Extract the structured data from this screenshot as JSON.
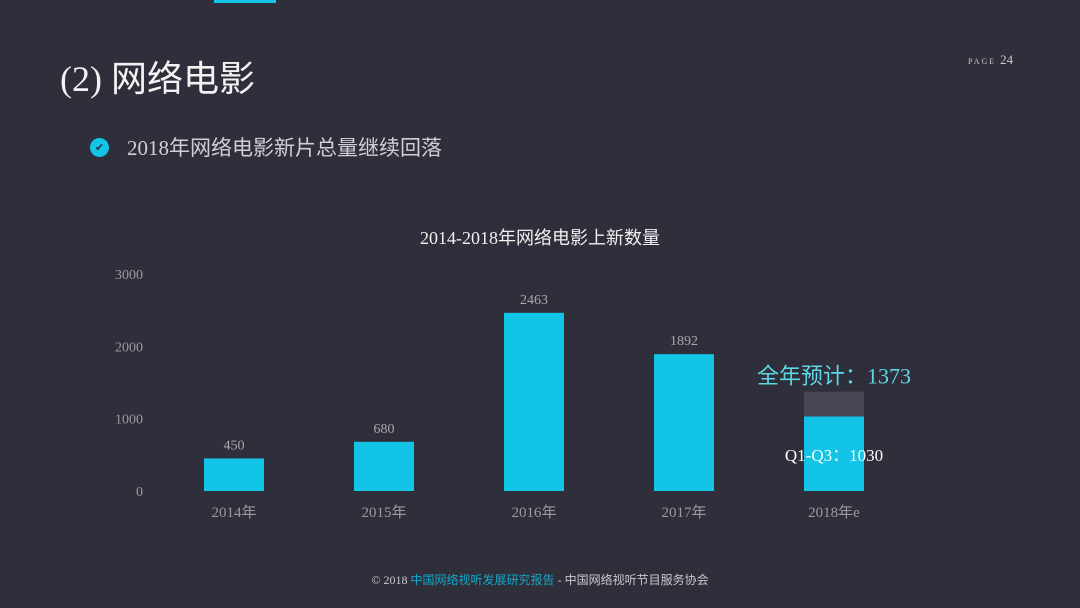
{
  "header": {
    "title": "(2) 网络电影",
    "page_label": "PAGE",
    "page_number": "24"
  },
  "bullet": {
    "text": "2018年网络电影新片总量继续回落",
    "icon": "check-circle-icon"
  },
  "colors": {
    "background": "#2e2f3a",
    "accent": "#12c5e6",
    "forecast": "#464752"
  },
  "chart_data": {
    "type": "bar",
    "title": "2014-2018年网络电影上新数量",
    "categories": [
      "2014年",
      "2015年",
      "2016年",
      "2017年",
      "2018年e"
    ],
    "values": [
      450,
      680,
      2463,
      1892,
      1030
    ],
    "value_labels": [
      "450",
      "680",
      "2463",
      "1892",
      ""
    ],
    "forecast": {
      "category": "2018年e",
      "value": 1373,
      "label": "全年预计：1373",
      "partial_label": "Q1-Q3：1030"
    },
    "ylim": [
      0,
      3000
    ],
    "yticks": [
      "0",
      "1000",
      "2000",
      "3000"
    ],
    "grid": false
  },
  "footer": {
    "copyright": "© 2018 ",
    "report": "中国网络视听发展研究报告",
    "separator": " - ",
    "org": "中国网络视听节目服务协会"
  }
}
